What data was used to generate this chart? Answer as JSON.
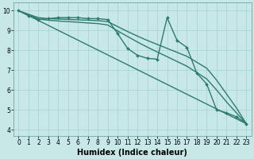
{
  "xlabel": "Humidex (Indice chaleur)",
  "ylabel": "",
  "xlim": [
    -0.5,
    23.5
  ],
  "ylim": [
    3.7,
    10.4
  ],
  "bg_color": "#c8e8e8",
  "grid_color": "#aad4d4",
  "line_color": "#2d7a6e",
  "lines": [
    {
      "x": [
        0,
        1,
        2,
        3,
        4,
        5,
        6,
        7,
        8,
        9,
        10,
        11,
        12,
        13,
        14,
        15,
        16,
        17,
        18,
        19,
        20,
        21,
        22,
        23
      ],
      "y": [
        10.0,
        9.75,
        9.55,
        9.6,
        9.65,
        9.65,
        9.65,
        9.6,
        9.6,
        9.55,
        8.85,
        8.1,
        7.75,
        7.6,
        7.55,
        9.65,
        8.5,
        8.15,
        6.85,
        6.3,
        5.0,
        4.85,
        4.65,
        4.3
      ],
      "marker": "D",
      "markersize": 2.0,
      "linewidth": 1.0
    },
    {
      "x": [
        0,
        1,
        2,
        3,
        4,
        5,
        6,
        7,
        8,
        9,
        10,
        11,
        12,
        13,
        14,
        15,
        16,
        17,
        18,
        19,
        20,
        21,
        22,
        23
      ],
      "y": [
        10.0,
        9.82,
        9.65,
        9.6,
        9.58,
        9.56,
        9.54,
        9.52,
        9.5,
        9.45,
        9.2,
        8.95,
        8.72,
        8.5,
        8.3,
        8.1,
        7.9,
        7.7,
        7.4,
        7.1,
        6.5,
        5.8,
        5.1,
        4.3
      ],
      "marker": null,
      "markersize": 0,
      "linewidth": 1.0
    },
    {
      "x": [
        0,
        1,
        2,
        3,
        4,
        5,
        6,
        7,
        8,
        9,
        10,
        11,
        12,
        13,
        14,
        15,
        16,
        17,
        18,
        19,
        20,
        21,
        22,
        23
      ],
      "y": [
        10.0,
        9.78,
        9.58,
        9.52,
        9.48,
        9.45,
        9.42,
        9.38,
        9.35,
        9.28,
        8.98,
        8.7,
        8.42,
        8.16,
        7.92,
        7.68,
        7.44,
        7.2,
        6.88,
        6.56,
        6.0,
        5.4,
        4.85,
        4.3
      ],
      "marker": null,
      "markersize": 0,
      "linewidth": 1.0
    },
    {
      "x": [
        0,
        23
      ],
      "y": [
        10.0,
        4.3
      ],
      "marker": null,
      "markersize": 0,
      "linewidth": 1.0
    }
  ],
  "xticks": [
    0,
    1,
    2,
    3,
    4,
    5,
    6,
    7,
    8,
    9,
    10,
    11,
    12,
    13,
    14,
    15,
    16,
    17,
    18,
    19,
    20,
    21,
    22,
    23
  ],
  "yticks": [
    4,
    5,
    6,
    7,
    8,
    9,
    10
  ],
  "tick_fontsize": 5.5,
  "xlabel_fontsize": 7.0
}
